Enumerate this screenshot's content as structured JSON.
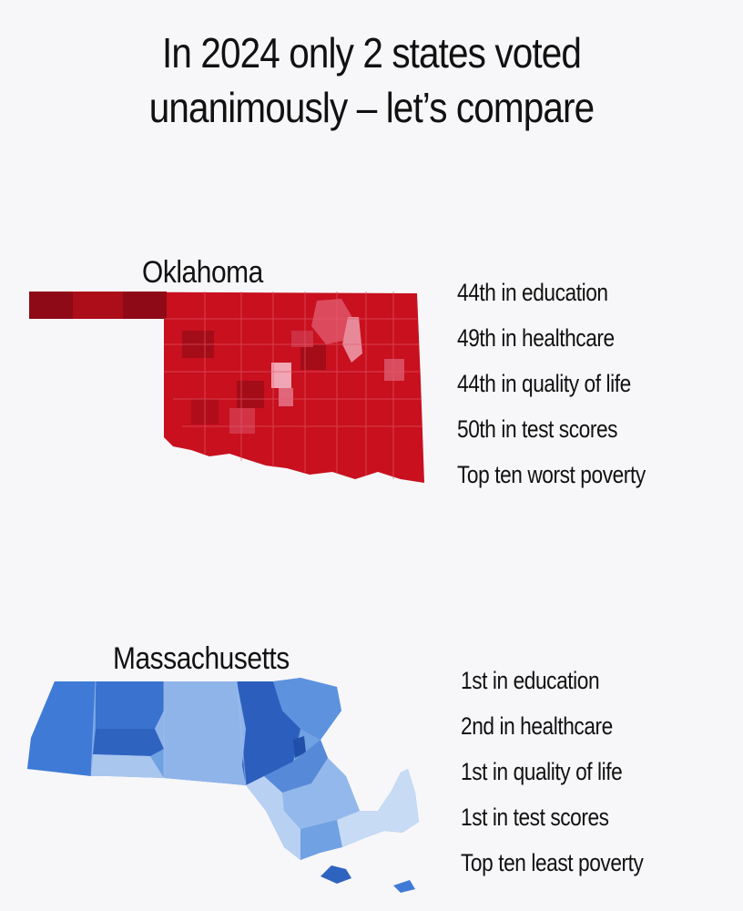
{
  "title": {
    "line1": "In 2024 only 2 states voted",
    "line2": "unanimously – let’s compare"
  },
  "oklahoma": {
    "name": "Oklahoma",
    "map_color": "#c8101e",
    "stats": [
      "44th in education",
      "49th in healthcare",
      "44th in quality of life",
      "50th in test scores",
      "Top ten worst poverty"
    ]
  },
  "massachusetts": {
    "name": "Massachusetts",
    "map_color": "#4f88db",
    "stats": [
      "1st in education",
      "2nd in healthcare",
      "1st in quality of life",
      "1st in test scores",
      "Top ten least poverty"
    ]
  }
}
